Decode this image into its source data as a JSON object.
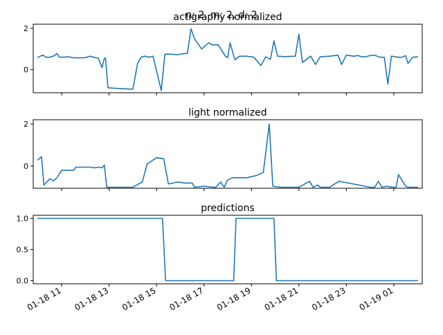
{
  "figure": {
    "suptitle": "n: 2, m: 2, d: 2",
    "x_tick_labels": [
      "01-18 11",
      "01-18 13",
      "01-18 15",
      "01-18 17",
      "01-18 19",
      "01-18 21",
      "01-18 23",
      "01-19 01"
    ],
    "x_tick_hours": [
      11,
      13,
      15,
      17,
      19,
      21,
      23,
      25
    ]
  },
  "chart_data": [
    {
      "type": "line",
      "title": "actigraphy normalized",
      "xlabel": "",
      "ylabel": "",
      "ylim": [
        -1.12,
        2.2
      ],
      "yticks": [
        0,
        2
      ],
      "grid": false,
      "color": "#1f77b4",
      "x_hours": [
        10.0,
        10.2,
        10.35,
        10.5,
        10.65,
        10.8,
        10.9,
        11.0,
        11.3,
        11.45,
        11.6,
        11.8,
        12.0,
        12.2,
        12.35,
        12.55,
        12.7,
        12.8,
        12.85,
        12.95,
        13.2,
        14.0,
        14.2,
        14.35,
        14.5,
        14.7,
        14.85,
        15.2,
        15.35,
        15.45,
        15.6,
        15.9,
        16.0,
        16.2,
        16.3,
        16.45,
        16.6,
        16.9,
        17.2,
        17.35,
        17.6,
        17.9,
        18.0,
        18.1,
        18.3,
        18.5,
        18.8,
        19.1,
        19.4,
        19.6,
        19.8,
        19.95,
        20.1,
        20.4,
        20.85,
        21.0,
        21.15,
        21.5,
        21.7,
        21.9,
        22.3,
        22.65,
        22.8,
        23.0,
        23.3,
        23.5,
        23.65,
        23.8,
        24.0,
        24.2,
        24.4,
        24.6,
        24.75,
        24.9,
        25.2,
        25.35,
        25.5,
        25.6,
        25.8,
        26.0
      ],
      "y": [
        0.6,
        0.7,
        0.6,
        0.6,
        0.65,
        0.78,
        0.6,
        0.6,
        0.62,
        0.58,
        0.57,
        0.57,
        0.58,
        0.65,
        0.6,
        0.55,
        0.1,
        0.55,
        0.55,
        -0.88,
        -0.9,
        -0.95,
        0.3,
        0.6,
        0.65,
        0.6,
        0.65,
        -1.02,
        0.75,
        0.75,
        0.75,
        0.72,
        0.75,
        0.78,
        0.78,
        1.98,
        1.5,
        1.0,
        1.3,
        1.2,
        1.2,
        0.65,
        0.58,
        1.3,
        0.48,
        0.65,
        0.65,
        0.6,
        0.2,
        0.62,
        0.5,
        1.4,
        0.65,
        0.63,
        0.65,
        1.72,
        0.35,
        0.65,
        0.25,
        0.62,
        0.65,
        0.7,
        0.25,
        0.7,
        0.65,
        0.68,
        0.62,
        0.62,
        0.68,
        0.7,
        0.6,
        0.6,
        -0.7,
        0.65,
        0.6,
        0.6,
        0.68,
        0.3,
        0.6,
        0.62
      ]
    },
    {
      "type": "line",
      "title": "light normalized",
      "xlabel": "",
      "ylabel": "",
      "ylim": [
        -1.05,
        2.2
      ],
      "yticks": [
        0,
        2
      ],
      "ytick_labels": [
        "0",
        "2"
      ],
      "grid": false,
      "color": "#1f77b4",
      "x_hours": [
        10.0,
        10.15,
        10.25,
        10.5,
        10.65,
        10.8,
        11.0,
        11.5,
        11.6,
        12.0,
        12.2,
        12.4,
        12.55,
        12.7,
        12.8,
        12.9,
        14.0,
        14.4,
        14.6,
        14.8,
        15.0,
        15.3,
        15.5,
        15.9,
        16.2,
        16.5,
        16.6,
        17.0,
        17.4,
        17.5,
        17.7,
        17.85,
        18.0,
        18.2,
        18.8,
        19.0,
        19.2,
        19.5,
        19.75,
        19.9,
        20.2,
        21.0,
        21.45,
        21.6,
        21.8,
        21.9,
        22.3,
        22.5,
        22.7,
        24.0,
        24.2,
        24.35,
        24.5,
        24.7,
        24.9,
        25.1,
        25.2,
        25.5,
        25.6,
        26.0
      ],
      "y": [
        0.3,
        0.45,
        -0.9,
        -0.6,
        -0.7,
        -0.55,
        -0.2,
        -0.2,
        -0.05,
        -0.05,
        -0.05,
        -0.08,
        -0.05,
        -0.08,
        0.05,
        -1.0,
        -1.0,
        -0.75,
        0.1,
        0.25,
        0.4,
        0.35,
        -0.85,
        -0.75,
        -0.8,
        -0.8,
        -1.0,
        -0.95,
        -1.0,
        -1.0,
        -0.75,
        -1.0,
        -0.65,
        -0.55,
        -0.55,
        -0.5,
        -0.45,
        -0.3,
        2.0,
        -0.95,
        -1.0,
        -1.0,
        -0.72,
        -1.0,
        -0.9,
        -1.0,
        -1.0,
        -0.85,
        -0.72,
        -1.0,
        -1.0,
        -0.72,
        -1.0,
        -0.95,
        -1.0,
        -1.0,
        -0.4,
        -0.95,
        -1.0,
        -1.0
      ]
    },
    {
      "type": "line",
      "title": "predictions",
      "xlabel": "",
      "ylabel": "",
      "ylim": [
        -0.05,
        1.05
      ],
      "yticks": [
        0.0,
        0.5,
        1.0
      ],
      "ytick_labels": [
        "0.0",
        "0.5",
        "1.0"
      ],
      "grid": false,
      "color": "#1f77b4",
      "x_hours": [
        10.0,
        15.25,
        15.38,
        18.25,
        18.35,
        19.95,
        20.05,
        26.0
      ],
      "y": [
        1.0,
        1.0,
        0.0,
        0.0,
        1.0,
        1.0,
        0.0,
        0.0
      ]
    }
  ]
}
